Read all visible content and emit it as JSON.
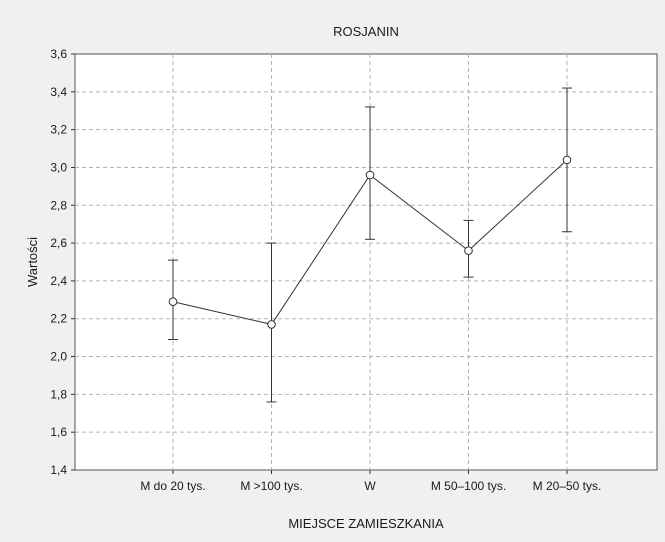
{
  "chart_data": {
    "type": "line",
    "title": "ROSJANIN",
    "xlabel": "MIEJSCE ZAMIESZKANIA",
    "ylabel": "Wartości",
    "categories": [
      "M do 20 tys.",
      "M >100 tys.",
      "W",
      "M 50–100 tys.",
      "M 20–50 tys."
    ],
    "series": [
      {
        "values": [
          2.29,
          2.17,
          2.96,
          2.56,
          3.04
        ],
        "error_low": [
          2.09,
          1.76,
          2.62,
          2.42,
          2.66
        ],
        "error_high": [
          2.51,
          2.6,
          3.32,
          2.72,
          3.42
        ]
      }
    ],
    "ylim": [
      1.4,
      3.6
    ],
    "yticks": [
      1.4,
      1.6,
      1.8,
      2.0,
      2.2,
      2.4,
      2.6,
      2.8,
      3.0,
      3.2,
      3.4,
      3.6
    ],
    "ytick_labels": [
      "1,4",
      "1,6",
      "1,8",
      "2,0",
      "2,2",
      "2,4",
      "2,6",
      "2,8",
      "3,0",
      "3,2",
      "3,4",
      "3,6"
    ],
    "grid": true,
    "colors": {
      "line": "#333333",
      "marker_fill": "#ffffff",
      "grid": "#b4b4b4",
      "background": "#f0f0f0",
      "plot_background": "#ffffff"
    }
  }
}
